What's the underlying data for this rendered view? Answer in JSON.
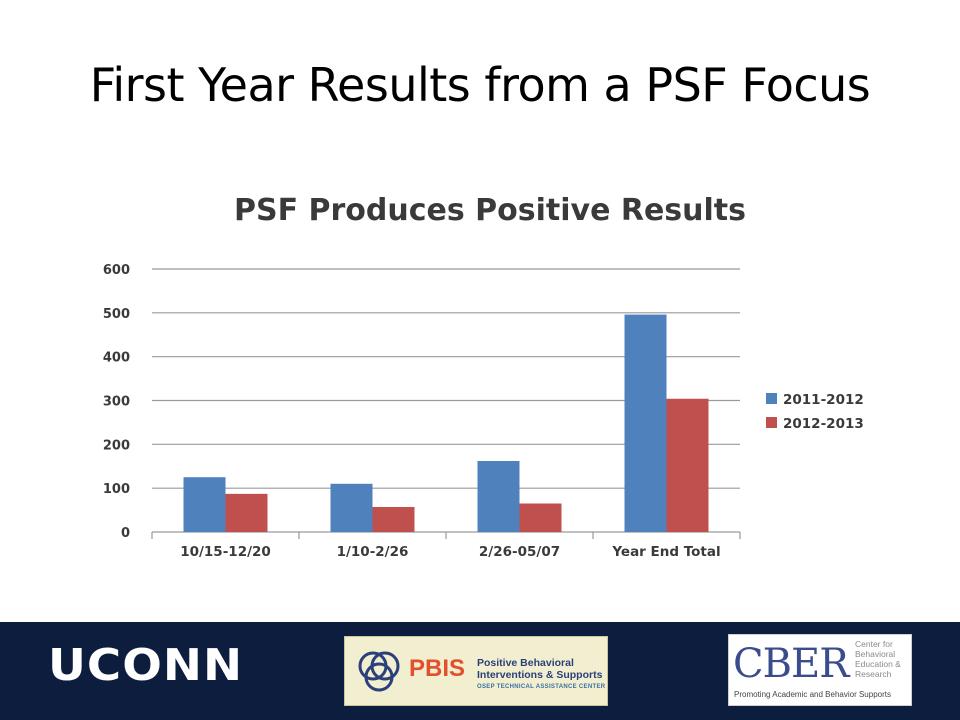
{
  "slide": {
    "title": "First Year Results from a PSF Focus"
  },
  "chart_data": {
    "type": "bar",
    "title": "PSF Produces Positive Results",
    "categories": [
      "10/15-12/20",
      "1/10-2/26",
      "2/26-05/07",
      "Year End Total"
    ],
    "series": [
      {
        "name": "2011-2012",
        "color": "#4f81bd",
        "values": [
          125,
          110,
          162,
          496
        ]
      },
      {
        "name": "2012-2013",
        "color": "#c0504d",
        "values": [
          87,
          57,
          65,
          304
        ]
      }
    ],
    "ylim": [
      0,
      600
    ],
    "yticks": [
      "0",
      "100",
      "200",
      "300",
      "400",
      "500",
      "600"
    ],
    "grid": true,
    "legend": "right"
  },
  "footer": {
    "uconn": "UCONN",
    "pbis": {
      "word": "PBIS",
      "line1": "Positive Behavioral",
      "line2": "Interventions & Supports",
      "line3": "OSEP TECHNICAL ASSISTANCE CENTER"
    },
    "cber": {
      "word": "CBER",
      "desc": "Center for Behavioral Education & Research",
      "tagline": "Promoting Academic and Behavior Supports"
    }
  },
  "colors": {
    "footer_bg": "#0c1d3d",
    "series_blue": "#4f81bd",
    "series_red": "#c0504d"
  }
}
